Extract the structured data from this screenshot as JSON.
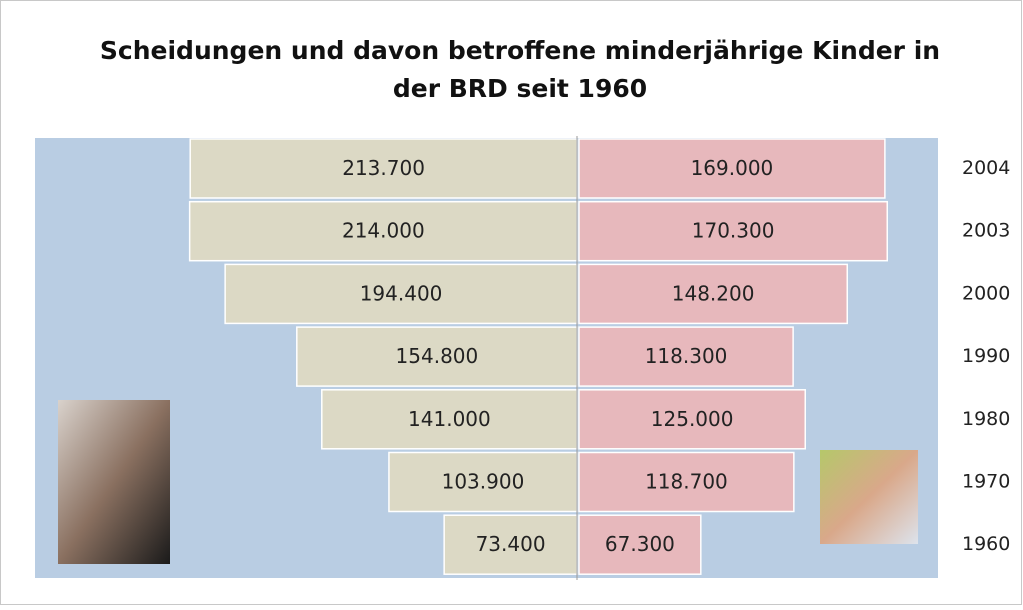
{
  "chart_data": {
    "type": "butterfly",
    "title": [
      "Scheidungen und davon betroffene minderjährige Kinder in",
      "der BRD seit 1960"
    ],
    "categories": [
      "2004",
      "2003",
      "2000",
      "1990",
      "1980",
      "1970",
      "1960"
    ],
    "series": [
      {
        "color": "#dcd9c5",
        "values": [
          213700,
          214000,
          194400,
          154800,
          141000,
          103900,
          73400
        ],
        "value_labels": [
          "213.700",
          "214.000",
          "194.400",
          "154.800",
          "141.000",
          "103.900",
          "73.400"
        ]
      },
      {
        "color": "#e7b8bc",
        "values": [
          169000,
          170300,
          148200,
          118300,
          125000,
          118700,
          67300
        ],
        "value_labels": [
          "169.000",
          "170.300",
          "148.200",
          "118.300",
          "125.000",
          "118.700",
          "67.300"
        ]
      }
    ]
  }
}
